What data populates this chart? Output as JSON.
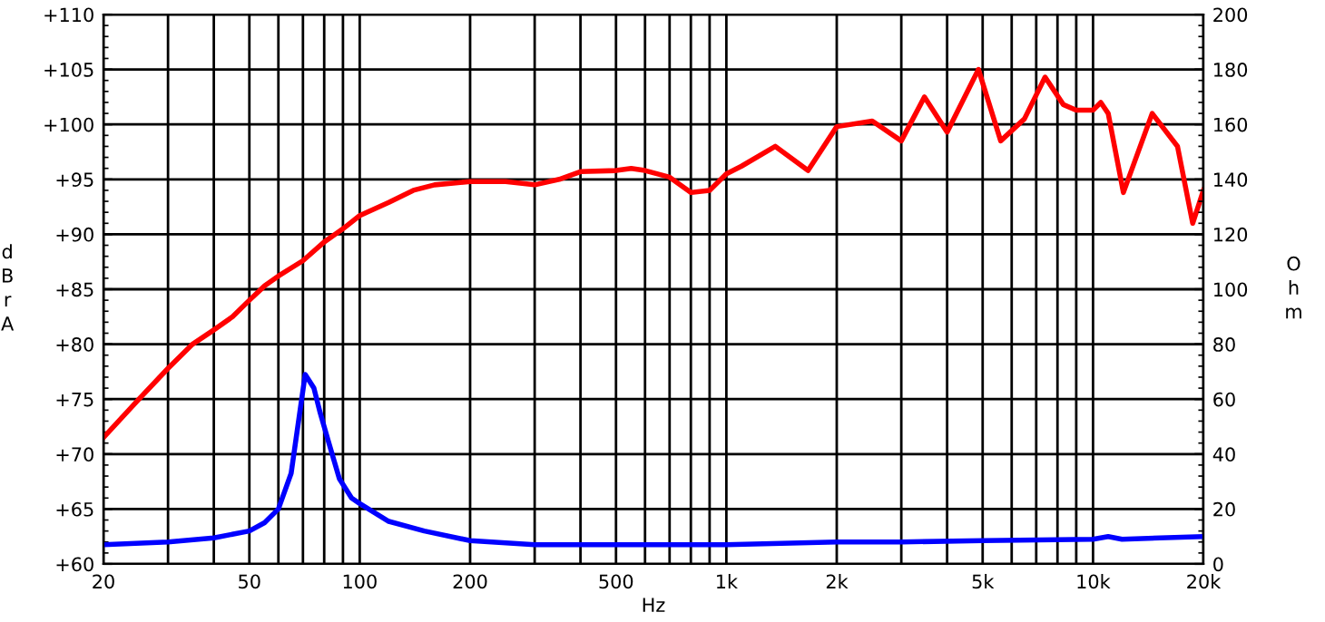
{
  "chart_data": {
    "type": "line",
    "xlabel": "Hz",
    "ylabel": "dBrA",
    "y2label": "Ohm",
    "log": "x",
    "grid": true,
    "line_style": "solid",
    "marker": "none",
    "xlim": [
      20,
      20000
    ],
    "xticks": [
      20,
      {
        "value": 30,
        "label": null
      },
      {
        "value": 40,
        "label": null
      },
      50,
      {
        "value": 60,
        "label": null
      },
      {
        "value": 70,
        "label": null
      },
      {
        "value": 80,
        "label": null
      },
      {
        "value": 90,
        "label": null
      },
      100,
      200,
      {
        "value": 300,
        "label": null
      },
      {
        "value": 400,
        "label": null
      },
      500,
      {
        "value": 600,
        "label": null
      },
      {
        "value": 700,
        "label": null
      },
      {
        "value": 800,
        "label": null
      },
      {
        "value": 900,
        "label": null
      },
      {
        "value": 1000,
        "label": "1k"
      },
      {
        "value": 2000,
        "label": "2k"
      },
      {
        "value": 3000,
        "label": null
      },
      {
        "value": 4000,
        "label": null
      },
      {
        "value": 5000,
        "label": "5k"
      },
      {
        "value": 6000,
        "label": null
      },
      {
        "value": 7000,
        "label": null
      },
      {
        "value": 8000,
        "label": null
      },
      {
        "value": 9000,
        "label": null
      },
      {
        "value": 10000,
        "label": "10k"
      },
      {
        "value": 20000,
        "label": "20k"
      }
    ],
    "ylim": [
      60,
      110
    ],
    "yticks": [
      {
        "value": 60,
        "label": "+60"
      },
      {
        "value": 65,
        "label": "+65"
      },
      {
        "value": 70,
        "label": "+70"
      },
      {
        "value": 75,
        "label": "+75"
      },
      {
        "value": 80,
        "label": "+80"
      },
      {
        "value": 85,
        "label": "+85"
      },
      {
        "value": 90,
        "label": "+90"
      },
      {
        "value": 95,
        "label": "+95"
      },
      {
        "value": 100,
        "label": "+100"
      },
      {
        "value": 105,
        "label": "+105"
      },
      {
        "value": 110,
        "label": "+110"
      }
    ],
    "y2lim": [
      0,
      200
    ],
    "y2ticks": [
      0,
      20,
      40,
      60,
      80,
      100,
      120,
      140,
      160,
      180,
      200
    ],
    "series": [
      {
        "color": "#ff0000",
        "axis": "y",
        "x": [
          20,
          25,
          30,
          35,
          40,
          45,
          50,
          55,
          60,
          70,
          80,
          90,
          100,
          120,
          140,
          160,
          200,
          250,
          300,
          350,
          400,
          500,
          550,
          600,
          700,
          800,
          900,
          1000,
          1100,
          1360,
          1670,
          2000,
          2500,
          3000,
          3470,
          4000,
          4870,
          5600,
          6500,
          7400,
          8300,
          9000,
          10000,
          10500,
          11000,
          12100,
          14500,
          17000,
          18700,
          20000
        ],
        "values": [
          71.5,
          75,
          77.8,
          80,
          81.3,
          82.5,
          84,
          85.3,
          86.2,
          87.6,
          89.3,
          90.5,
          91.7,
          92.9,
          94,
          94.5,
          94.8,
          94.8,
          94.5,
          95,
          95.7,
          95.8,
          96,
          95.8,
          95.2,
          93.8,
          94,
          95.5,
          96.2,
          98,
          95.8,
          99.8,
          100.3,
          98.5,
          102.5,
          99.3,
          105,
          98.5,
          100.5,
          104.3,
          101.8,
          101.3,
          101.3,
          102,
          101,
          93.8,
          101,
          98,
          91,
          94
        ]
      },
      {
        "color": "#0000ff",
        "axis": "y2",
        "x": [
          20,
          30,
          40,
          50,
          55,
          60,
          65,
          71,
          75,
          78,
          82,
          88,
          95,
          100,
          120,
          150,
          200,
          300,
          500,
          700,
          1000,
          2000,
          3000,
          5000,
          10000,
          11000,
          12000,
          20000
        ],
        "values": [
          7,
          8,
          9.5,
          12,
          15,
          20,
          33,
          69,
          64,
          55,
          45,
          31,
          24,
          22,
          15.5,
          12,
          8.5,
          7,
          7,
          7,
          7,
          8,
          8,
          8.5,
          9,
          10,
          9,
          10
        ]
      }
    ]
  }
}
